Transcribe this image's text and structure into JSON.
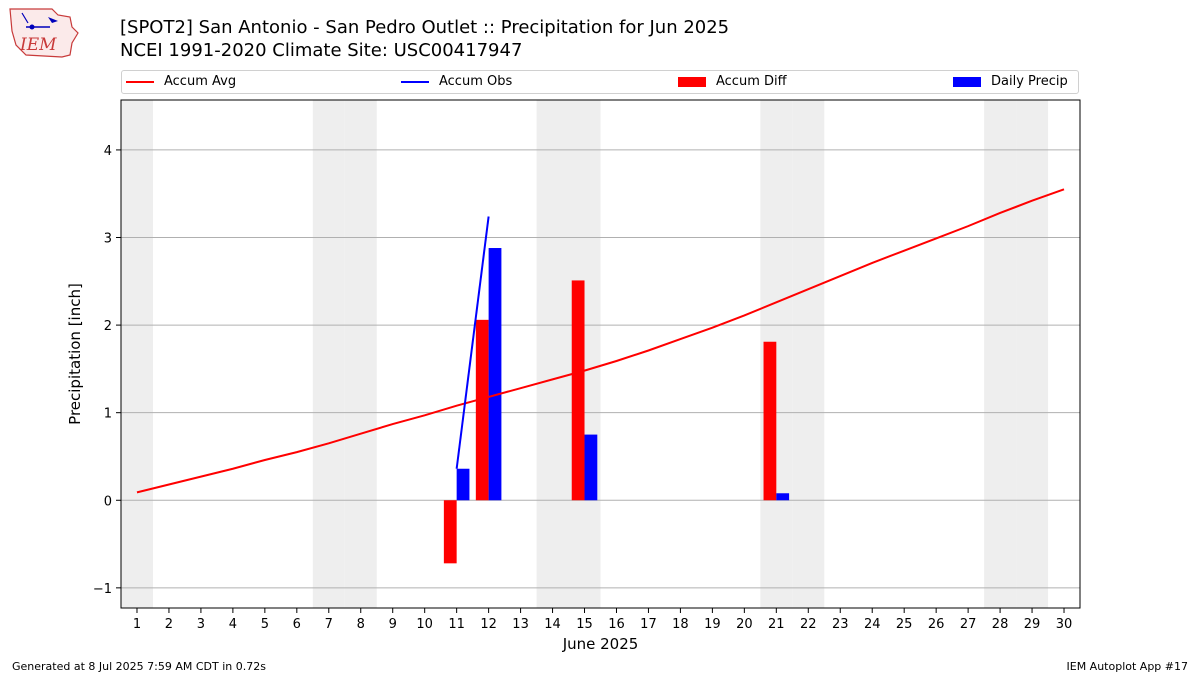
{
  "header": {
    "title_line1": "[SPOT2] San Antonio - San Pedro Outlet :: Precipitation for Jun 2025",
    "title_line2": "NCEI 1991-2020 Climate Site: USC00417947"
  },
  "logo_text": "IEM",
  "footer": {
    "left": "Generated at 8 Jul 2025 7:59 AM CDT in 0.72s",
    "right": "IEM Autoplot App #17"
  },
  "colors": {
    "accum_avg": "#ff0000",
    "accum_obs": "#0000ff",
    "accum_diff": "#ff0000",
    "daily_precip": "#0000ff",
    "weekend_shade": "#eeeeee",
    "grid": "#b0b0b0"
  },
  "chart_data": {
    "type": "bar",
    "xlabel": "June 2025",
    "ylabel": "Precipitation [inch]",
    "x": [
      1,
      2,
      3,
      4,
      5,
      6,
      7,
      8,
      9,
      10,
      11,
      12,
      13,
      14,
      15,
      16,
      17,
      18,
      19,
      20,
      21,
      22,
      23,
      24,
      25,
      26,
      27,
      28,
      29,
      30
    ],
    "xlim": [
      0.5,
      30.5
    ],
    "ylim": [
      -1.23,
      4.57
    ],
    "yticks": [
      -1,
      0,
      1,
      2,
      3,
      4
    ],
    "grid": "horizontal",
    "legend_position": "top",
    "weekend_days": [
      1,
      7,
      8,
      14,
      15,
      21,
      22,
      28,
      29
    ],
    "series": [
      {
        "name": "Accum Avg",
        "kind": "line",
        "x": [
          1,
          2,
          3,
          4,
          5,
          6,
          7,
          8,
          9,
          10,
          11,
          12,
          13,
          14,
          15,
          16,
          17,
          18,
          19,
          20,
          21,
          22,
          23,
          24,
          25,
          26,
          27,
          28,
          29,
          30
        ],
        "values": [
          0.09,
          0.18,
          0.27,
          0.36,
          0.46,
          0.55,
          0.65,
          0.76,
          0.87,
          0.97,
          1.08,
          1.18,
          1.28,
          1.38,
          1.48,
          1.59,
          1.71,
          1.84,
          1.97,
          2.11,
          2.26,
          2.41,
          2.56,
          2.71,
          2.85,
          2.99,
          3.13,
          3.28,
          3.42,
          3.55
        ]
      },
      {
        "name": "Accum Obs",
        "kind": "line",
        "x": [
          11,
          12
        ],
        "values": [
          0.36,
          3.24
        ]
      },
      {
        "name": "Accum Diff",
        "kind": "bar",
        "x": [
          11,
          12,
          15,
          21
        ],
        "values": [
          -0.72,
          2.06,
          2.51,
          1.81
        ]
      },
      {
        "name": "Daily Precip",
        "kind": "bar",
        "x": [
          11,
          12,
          15,
          21
        ],
        "values": [
          0.36,
          2.88,
          0.75,
          0.08
        ]
      }
    ]
  }
}
